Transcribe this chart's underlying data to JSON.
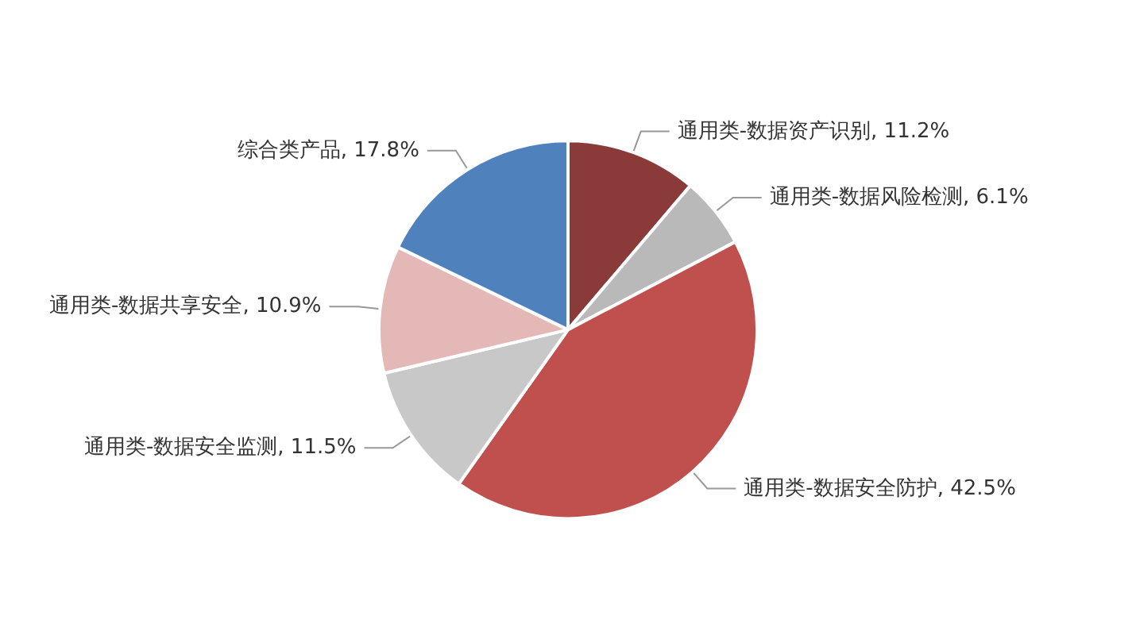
{
  "chart_data": {
    "type": "pie",
    "categories": [
      "通用类-数据资产识别",
      "通用类-数据风险检测",
      "通用类-数据安全防护",
      "通用类-数据安全监测",
      "通用类-数据共享安全",
      "综合类产品"
    ],
    "values": [
      11.2,
      6.1,
      42.5,
      11.5,
      10.9,
      17.8
    ],
    "colors": [
      "#8b3a3a",
      "#b9b9b9",
      "#c0504d",
      "#c8c8c8",
      "#e4b8b7",
      "#4f81bd"
    ],
    "value_labels": [
      ", 11.2%",
      ", 6.1%",
      ", 42.5%",
      ", 11.5%",
      ", 10.9%",
      ", 17.8%"
    ],
    "legend": false
  }
}
